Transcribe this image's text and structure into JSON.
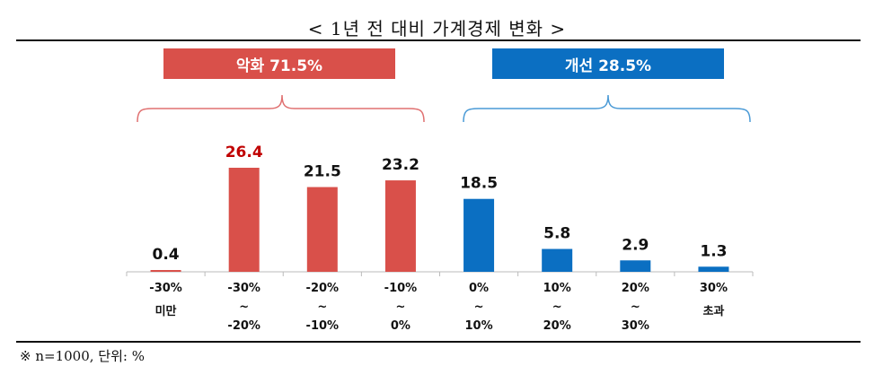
{
  "title": "< 1년 전 대비 가계경제 변화 >",
  "footnote": "※ n=1000, 단위: %",
  "groups": {
    "negative": {
      "label": "악화 71.5%",
      "color": "#d9504a"
    },
    "positive": {
      "label": "개선 28.5%",
      "color": "#0b6fc2"
    }
  },
  "chart_data": {
    "type": "bar",
    "categories": [
      [
        "-30%",
        "미만"
      ],
      [
        "-30%",
        "~",
        "-20%"
      ],
      [
        "-20%",
        "~",
        "-10%"
      ],
      [
        "-10%",
        "~",
        "0%"
      ],
      [
        "0%",
        "~",
        "10%"
      ],
      [
        "10%",
        "~",
        "20%"
      ],
      [
        "20%",
        "~",
        "30%"
      ],
      [
        "30%",
        "초과"
      ]
    ],
    "values": [
      0.4,
      26.4,
      21.5,
      23.2,
      18.5,
      5.8,
      2.9,
      1.3
    ],
    "value_labels": [
      "0.4",
      "26.4",
      "21.5",
      "23.2",
      "18.5",
      "5.8",
      "2.9",
      "1.3"
    ],
    "bar_colors": [
      "#d9504a",
      "#d9504a",
      "#d9504a",
      "#d9504a",
      "#0b6fc2",
      "#0b6fc2",
      "#0b6fc2",
      "#0b6fc2"
    ],
    "highlight_label_color": "#c00000",
    "highlight_index": 1,
    "ylim": [
      0,
      26.4
    ],
    "grid": false,
    "xlabel": "",
    "ylabel": ""
  }
}
